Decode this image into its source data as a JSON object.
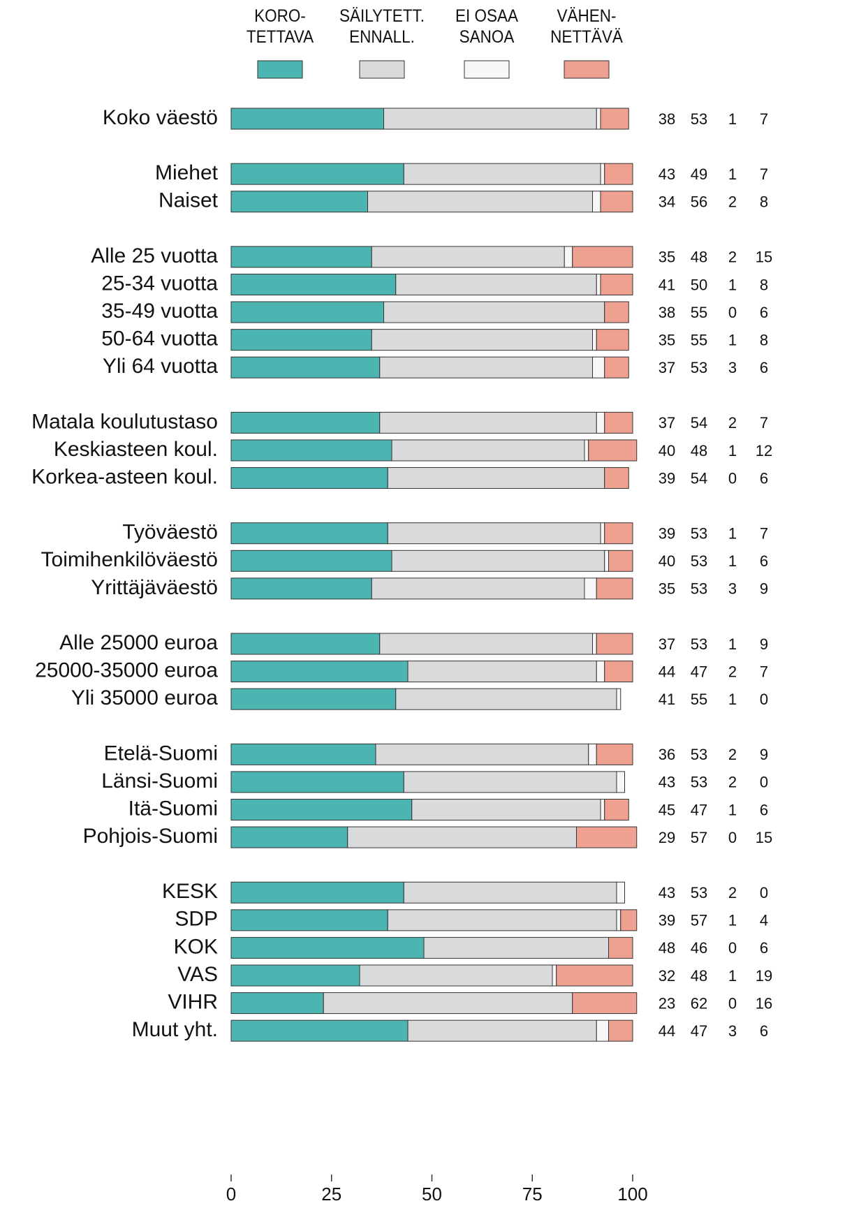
{
  "chart_data": {
    "type": "stacked-barh",
    "categories": [
      "Koko väestö",
      null,
      "Miehet",
      "Naiset",
      null,
      "Alle 25 vuotta",
      "25-34 vuotta",
      "35-49 vuotta",
      "50-64 vuotta",
      "Yli 64 vuotta",
      null,
      "Matala koulutustaso",
      "Keskiasteen koul.",
      "Korkea-asteen koul.",
      null,
      "Työväestö",
      "Toimihenkilöväestö",
      "Yrittäjäväestö",
      null,
      "Alle 25000 euroa",
      "25000-35000 euroa",
      "Yli 35000 euroa",
      null,
      "Etelä-Suomi",
      "Länsi-Suomi",
      "Itä-Suomi",
      "Pohjois-Suomi",
      null,
      "KESK",
      "SDP",
      "KOK",
      "VAS",
      "VIHR",
      "Muut yht."
    ],
    "series": [
      {
        "name": "KORO-\nTETTAVA",
        "color": "#4db5b1",
        "values": [
          38,
          null,
          43,
          34,
          null,
          35,
          41,
          38,
          35,
          37,
          null,
          37,
          40,
          39,
          null,
          39,
          40,
          35,
          null,
          37,
          44,
          41,
          null,
          36,
          43,
          45,
          29,
          null,
          43,
          39,
          48,
          32,
          23,
          44
        ]
      },
      {
        "name": "SÄILYTETT.\nENNALL.",
        "color": "#d9dadc",
        "values": [
          53,
          null,
          49,
          56,
          null,
          48,
          50,
          55,
          55,
          53,
          null,
          54,
          48,
          54,
          null,
          53,
          53,
          53,
          null,
          53,
          47,
          55,
          null,
          53,
          53,
          47,
          57,
          null,
          53,
          57,
          46,
          48,
          62,
          47
        ]
      },
      {
        "name": "EI OSAA\nSANOA",
        "color": "#f7f7f7",
        "values": [
          1,
          null,
          1,
          2,
          null,
          2,
          1,
          0,
          1,
          3,
          null,
          2,
          1,
          0,
          null,
          1,
          1,
          3,
          null,
          1,
          2,
          1,
          null,
          2,
          2,
          1,
          0,
          null,
          2,
          1,
          0,
          1,
          0,
          3
        ]
      },
      {
        "name": "VÄHEN-\nNETTÄVÄ",
        "color": "#eea190",
        "values": [
          7,
          null,
          7,
          8,
          null,
          15,
          8,
          6,
          8,
          6,
          null,
          7,
          12,
          6,
          null,
          7,
          6,
          9,
          null,
          9,
          7,
          0,
          null,
          9,
          0,
          6,
          15,
          null,
          0,
          4,
          6,
          19,
          16,
          6
        ]
      }
    ],
    "xlim": [
      0,
      100
    ],
    "xticks": [
      0,
      25,
      50,
      75,
      100
    ]
  }
}
